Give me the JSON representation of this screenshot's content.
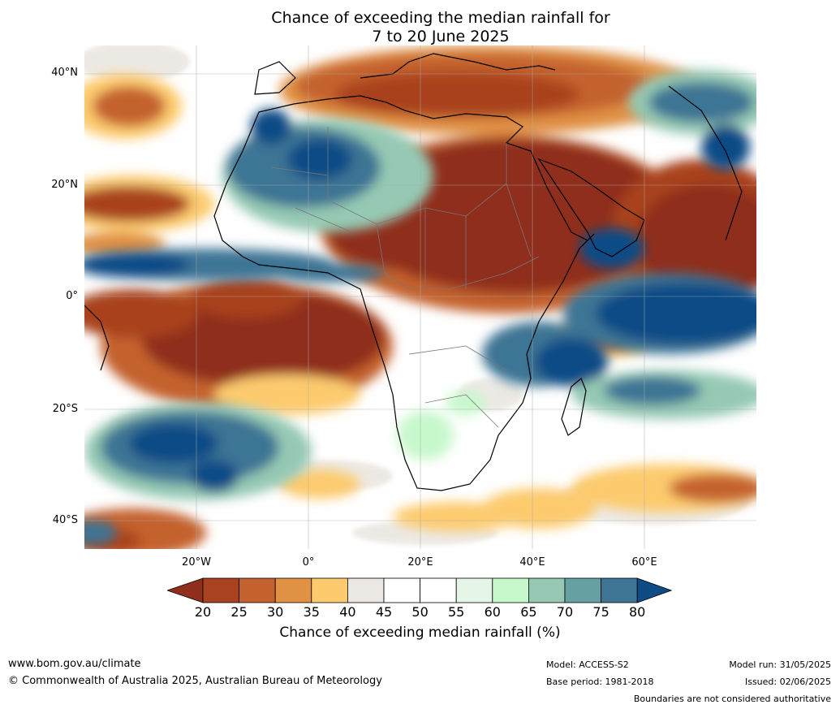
{
  "title_line1": "Chance of exceeding the median rainfall for",
  "title_line2": "7 to 20 June 2025",
  "lat_labels": [
    "40°N",
    "20°N",
    "0°",
    "20°S",
    "40°S"
  ],
  "lon_labels": [
    "20°W",
    "0°",
    "20°E",
    "40°E",
    "60°E"
  ],
  "colorbar": {
    "ticks": [
      "20",
      "25",
      "30",
      "35",
      "40",
      "45",
      "50",
      "55",
      "60",
      "65",
      "70",
      "75",
      "80"
    ],
    "colors": [
      "#8f2e1b",
      "#a9431f",
      "#c4622f",
      "#e09144",
      "#fdcb6e",
      "#ebe7e2",
      "#ffffff",
      "#ffffff",
      "#e5f5e8",
      "#c7f8cc",
      "#95c9b3",
      "#66a0a2",
      "#3e7494",
      "#0f4c86"
    ],
    "label": "Chance of exceeding median rainfall (%)"
  },
  "footer": {
    "url": "www.bom.gov.au/climate",
    "copyright": "© Commonwealth of Australia 2025, Australian Bureau of Meteorology",
    "model": "Model: ACCESS-S2",
    "base_period": "Base period: 1981-2018",
    "model_run": "Model run: 31/05/2025",
    "issued": "Issued: 02/06/2025",
    "disclaimer": "Boundaries are not considered authoritative"
  }
}
